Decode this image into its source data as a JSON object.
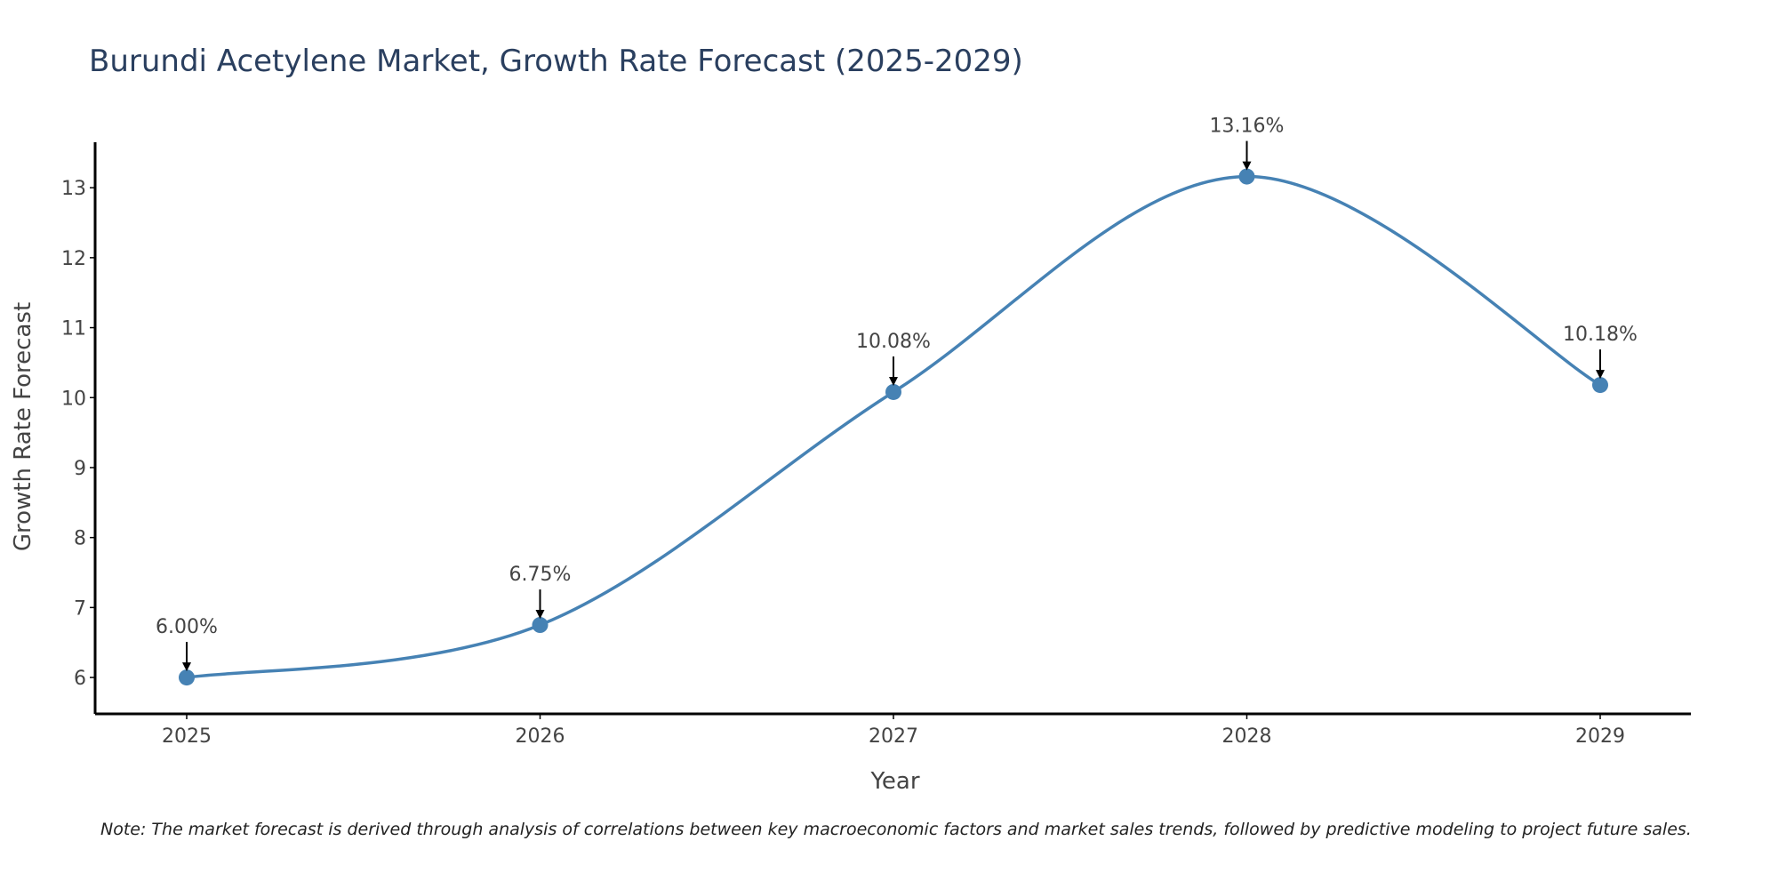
{
  "chart_data": {
    "type": "line",
    "title": "Burundi Acetylene Market, Growth Rate Forecast (2025-2029)",
    "xlabel": "Year",
    "ylabel": "Growth Rate Forecast",
    "categories": [
      "2025",
      "2026",
      "2027",
      "2028",
      "2029"
    ],
    "series": [
      {
        "name": "Growth Rate Forecast",
        "values": [
          6.0,
          6.75,
          10.08,
          13.16,
          10.18
        ],
        "labels": [
          "6.00%",
          "6.75%",
          "10.08%",
          "13.16%",
          "10.18%"
        ]
      }
    ],
    "yticks": [
      6,
      7,
      8,
      9,
      10,
      11,
      12,
      13
    ],
    "ylim": [
      5.48,
      13.65
    ],
    "grid": false,
    "line_shape": "spline",
    "line_color": "#4682b4",
    "marker_color": "#4682b4",
    "arrow_color": "#000000",
    "note": "Note: The market forecast is derived through analysis of correlations between key macroeconomic factors and market sales trends, followed by predictive modeling to project future sales."
  }
}
